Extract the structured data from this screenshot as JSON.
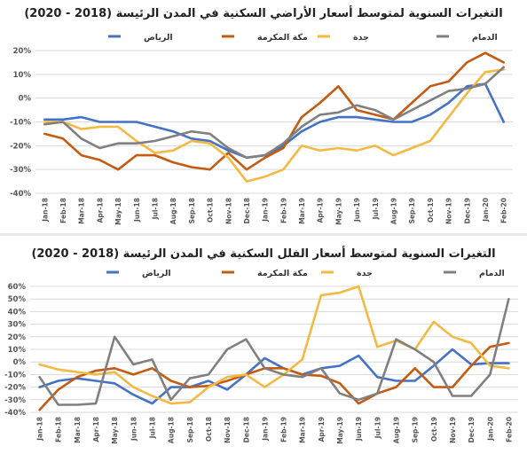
{
  "chart_data": [
    {
      "type": "line",
      "title": "التغيرات السنوية لمتوسط أسعار الأراضي السكنية في المدن الرئيسة (2018 - 2020)",
      "x": [
        "Jan-18",
        "Feb-18",
        "Mar-18",
        "Apr-18",
        "May-18",
        "Jun-18",
        "Jul-18",
        "Aug-18",
        "Sep-18",
        "Oct-18",
        "Nov-18",
        "Dec-18",
        "Jan-19",
        "Feb-19",
        "Mar-19",
        "Apr-19",
        "May-19",
        "Jun-19",
        "Jul-19",
        "Aug-19",
        "Sep-19",
        "Oct-19",
        "Nov-19",
        "Dec-19",
        "Jan-20",
        "Feb-20"
      ],
      "y_ticks": [
        "20%",
        "10%",
        "0%",
        "-10%",
        "-20%",
        "-30%",
        "-40%"
      ],
      "ylim": [
        -40,
        20
      ],
      "grid": true,
      "legend_position": "top",
      "series": [
        {
          "name": "الرياض",
          "color": "#4472C4",
          "values": [
            -9,
            -9,
            -8,
            -10,
            -10,
            -10,
            -12,
            -14,
            -17,
            -18,
            -22,
            -25,
            -24,
            -20,
            -14,
            -10,
            -8,
            -8,
            -9,
            -10,
            -10,
            -7,
            -2,
            5,
            6,
            -10
          ]
        },
        {
          "name": "مكة المكرمة",
          "color": "#C55A11",
          "values": [
            -15,
            -17,
            -24,
            -26,
            -30,
            -24,
            -24,
            -27,
            -29,
            -30,
            -23,
            -30,
            -25,
            -21,
            -8,
            -2,
            5,
            -5,
            -7,
            -9,
            -2,
            5,
            7,
            15,
            19,
            15
          ]
        },
        {
          "name": "جدة",
          "color": "#F4B942",
          "values": [
            -10,
            -10,
            -13,
            -12,
            -12,
            -18,
            -23,
            -22,
            -18,
            -19,
            -25,
            -35,
            -33,
            -30,
            -20,
            -22,
            -21,
            -22,
            -20,
            -24,
            -21,
            -18,
            -8,
            2,
            11,
            12
          ]
        },
        {
          "name": "الدمام",
          "color": "#808080",
          "values": [
            -11,
            -10,
            -17,
            -21,
            -19,
            -19,
            -18,
            -16,
            -14,
            -15,
            -21,
            -25,
            -24,
            -19,
            -12,
            -7,
            -6,
            -3,
            -5,
            -9,
            -5,
            -1,
            3,
            4,
            6,
            13
          ]
        }
      ]
    },
    {
      "type": "line",
      "title": "التغيرات السنوية لمتوسط أسعار الفلل السكنية في المدن الرئيسة (2018 - 2020)",
      "x": [
        "Jan-18",
        "Feb-18",
        "Mar-18",
        "Apr-18",
        "May-18",
        "Jun-18",
        "Jul-18",
        "Aug-18",
        "Sep-18",
        "Oct-18",
        "Nov-18",
        "Dec-18",
        "Jan-19",
        "Feb-19",
        "Mar-19",
        "Apr-19",
        "May-19",
        "Jun-19",
        "Jul-19",
        "Aug-19",
        "Sep-19",
        "Oct-19",
        "Nov-19",
        "Dec-19",
        "Jan-20",
        "Feb-20"
      ],
      "y_ticks": [
        "60%",
        "50%",
        "40%",
        "30%",
        "20%",
        "10%",
        "0%",
        "-10%",
        "-20%",
        "-30%",
        "-40%"
      ],
      "ylim": [
        -40,
        60
      ],
      "grid": true,
      "legend_position": "top",
      "series": [
        {
          "name": "الرياض",
          "color": "#4472C4",
          "values": [
            -20,
            -15,
            -13,
            -15,
            -17,
            -26,
            -33,
            -20,
            -20,
            -15,
            -22,
            -10,
            3,
            -5,
            -10,
            -5,
            -3,
            5,
            -12,
            -15,
            -15,
            -3,
            10,
            -2,
            -1,
            -1
          ]
        },
        {
          "name": "مكة المكرمة",
          "color": "#C55A11",
          "values": [
            -38,
            -22,
            -12,
            -7,
            -5,
            -10,
            -5,
            -15,
            -20,
            -19,
            -15,
            -10,
            -5,
            -5,
            -10,
            -11,
            -17,
            -33,
            -25,
            -20,
            -5,
            -20,
            -20,
            -3,
            12,
            15
          ]
        },
        {
          "name": "جدة",
          "color": "#F4B942",
          "values": [
            -2,
            -6,
            -8,
            -10,
            -8,
            -20,
            -27,
            -33,
            -32,
            -20,
            -12,
            -10,
            -20,
            -10,
            2,
            53,
            55,
            60,
            12,
            17,
            10,
            32,
            20,
            15,
            -3,
            -5
          ]
        },
        {
          "name": "الدمام",
          "color": "#808080",
          "values": [
            -12,
            -34,
            -34,
            -33,
            20,
            -2,
            2,
            -30,
            -13,
            -10,
            10,
            18,
            -5,
            -10,
            -12,
            -5,
            -25,
            -30,
            -25,
            18,
            10,
            0,
            -27,
            -27,
            -10,
            50
          ]
        }
      ]
    }
  ]
}
